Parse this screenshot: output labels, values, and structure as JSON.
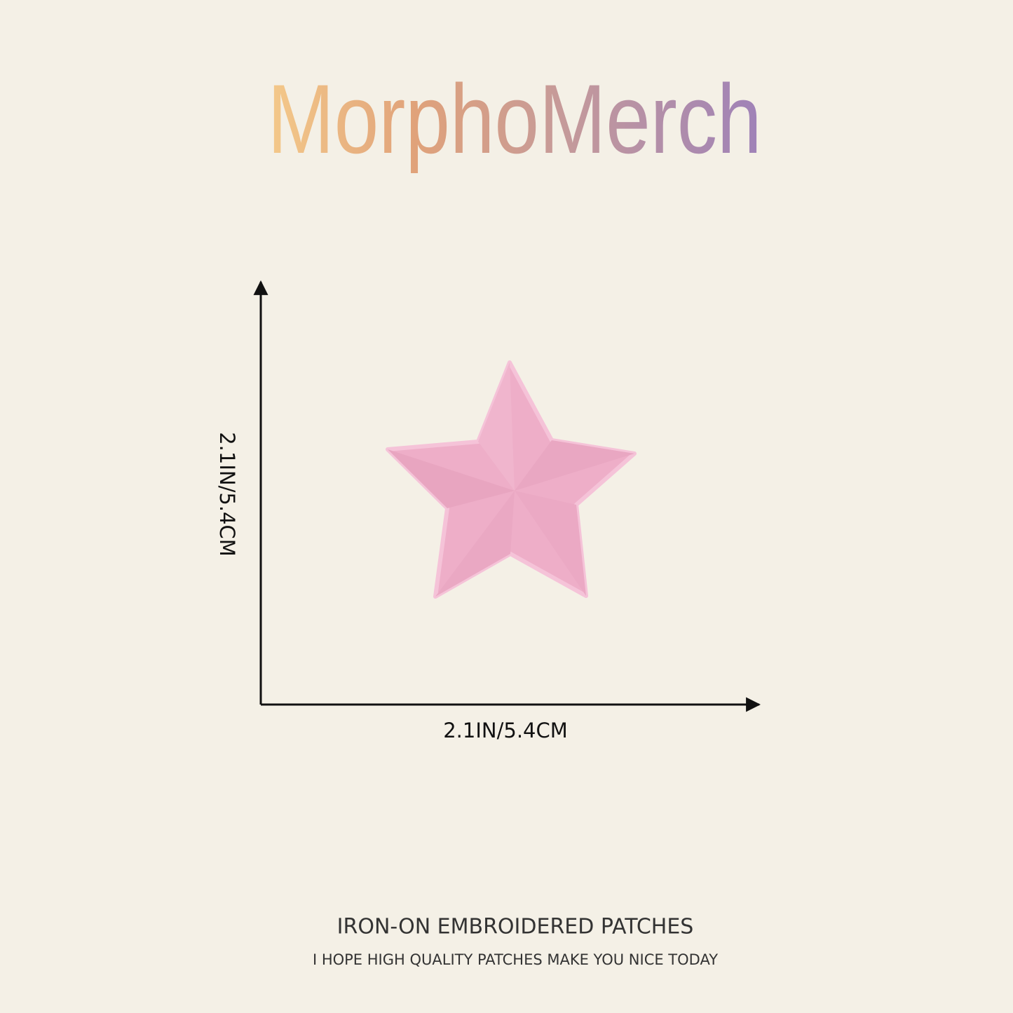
{
  "brand": "MorphoMerch",
  "dimensions": {
    "height_label": "2.1IN/5.4CM",
    "width_label": "2.1IN/5.4CM"
  },
  "footer": {
    "title": "IRON-ON EMBROIDERED PATCHES",
    "subtitle": "I HOPE HIGH QUALITY PATCHES MAKE YOU NICE TODAY"
  }
}
